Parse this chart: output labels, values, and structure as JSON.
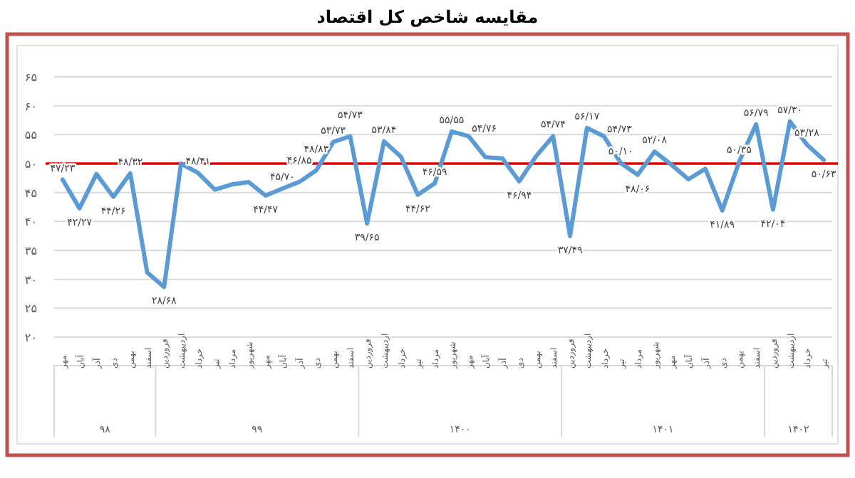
{
  "chart_data": {
    "type": "line",
    "title": "مقایسه شاخص کل اقتصاد",
    "categories": [
      "مهر",
      "آبان",
      "آذر",
      "دی",
      "بهمن",
      "اسفند",
      "فروردین",
      "اردیبهشت",
      "خرداد",
      "تیر",
      "مرداد",
      "شهریور",
      "مهر",
      "آبان",
      "آذر",
      "دی",
      "بهمن",
      "اسفند",
      "فروردین",
      "اردیبهشت",
      "خرداد",
      "تیر",
      "مرداد",
      "شهریور",
      "مهر",
      "آبان",
      "آذر",
      "دی",
      "بهمن",
      "اسفند",
      "فروردین",
      "اردیبهشت",
      "خرداد",
      "تیر",
      "مرداد",
      "شهریور",
      "مهر",
      "آبان",
      "آذر",
      "دی",
      "بهمن",
      "اسفند",
      "فروردین",
      "اردیبهشت",
      "خرداد",
      "تیر"
    ],
    "series": [
      {
        "color": "#5b9bd5",
        "values": [
          47.23,
          42.27,
          48.2,
          44.26,
          48.32,
          31.2,
          28.68,
          50.0,
          48.41,
          45.5,
          46.4,
          46.8,
          44.47,
          45.7,
          46.85,
          48.83,
          53.73,
          54.73,
          39.65,
          53.84,
          51.2,
          44.62,
          46.59,
          55.55,
          54.76,
          51.1,
          50.9,
          46.94,
          51.3,
          54.74,
          37.49,
          56.17,
          54.73,
          50.1,
          48.06,
          52.08,
          49.8,
          47.3,
          49.1,
          41.89,
          50.35,
          56.79,
          42.04,
          57.3,
          53.28,
          50.63
        ],
        "value_labels": [
          "۴۷/۲۳",
          "۴۲/۲۷",
          null,
          "۴۴/۲۶",
          "۴۸/۳۲",
          null,
          "۲۸/۶۸",
          null,
          "۴۸/۴۱",
          null,
          null,
          null,
          "۴۴/۴۷",
          "۴۵/۷۰",
          "۴۶/۸۵",
          "۴۸/۸۳",
          "۵۳/۷۳",
          "۵۴/۷۳",
          "۳۹/۶۵",
          "۵۳/۸۴",
          null,
          "۴۴/۶۲",
          "۴۶/۵۹",
          "۵۵/۵۵",
          "۵۴/۷۶",
          null,
          null,
          "۴۶/۹۴",
          null,
          "۵۴/۷۴",
          "۳۷/۴۹",
          "۵۶/۱۷",
          "۵۴/۷۳",
          "۵۰/۱۰",
          "۴۸/۰۶",
          "۵۲/۰۸",
          null,
          null,
          null,
          "۴۱/۸۹",
          "۵۰/۳۵",
          "۵۶/۷۹",
          "۴۲/۰۴",
          "۵۷/۳۰",
          "۵۳/۲۸",
          "۵۰/۶۳"
        ]
      }
    ],
    "ylim": [
      20,
      65
    ],
    "yticks": [
      {
        "value": 20,
        "label": "۲۰"
      },
      {
        "value": 25,
        "label": "۲۵"
      },
      {
        "value": 30,
        "label": "۳۰"
      },
      {
        "value": 35,
        "label": "۳۵"
      },
      {
        "value": 40,
        "label": "۴۰"
      },
      {
        "value": 45,
        "label": "۴۵"
      },
      {
        "value": 50,
        "label": "۵۰"
      },
      {
        "value": 55,
        "label": "۵۵"
      },
      {
        "value": 60,
        "label": "۶۰"
      },
      {
        "value": 65,
        "label": "۶۵"
      }
    ],
    "grid": "y",
    "ref_lines": [
      {
        "axis": "y",
        "value": 50,
        "color": "#e00000"
      }
    ],
    "annotations": [
      "۹۸",
      "۹۹",
      "۱۴۰۰",
      "۱۴۰۱",
      "۱۴۰۲"
    ]
  }
}
